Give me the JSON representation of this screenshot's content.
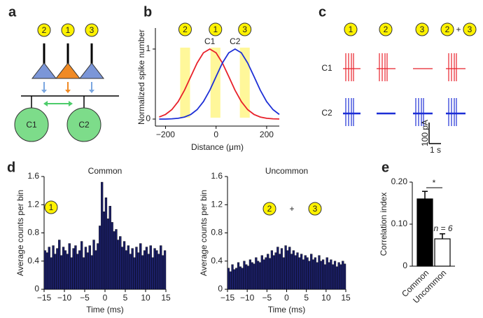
{
  "panel_labels": [
    "a",
    "b",
    "c",
    "d",
    "e"
  ],
  "panel_a": {
    "inputs": [
      "2",
      "1",
      "3"
    ],
    "cells": [
      "C1",
      "C2"
    ]
  },
  "panel_c": {
    "stimuli": [
      "1",
      "2",
      "3"
    ],
    "combined": {
      "parts": [
        "2",
        "3"
      ],
      "join": "+"
    },
    "rows": [
      "C1",
      "C2"
    ],
    "row_colors": [
      "#e8202a",
      "#1d2fd6"
    ],
    "scale_current": "100 pA",
    "scale_time": "1 s"
  },
  "chart_data": [
    {
      "type": "line",
      "xlabel": "Distance (μm)",
      "ylabel": "Normalized spike number",
      "x": [
        -225,
        -200,
        -175,
        -150,
        -125,
        -100,
        -75,
        -50,
        -25,
        0,
        25,
        50,
        75,
        100,
        125,
        150,
        175,
        200,
        225,
        250
      ],
      "series": [
        {
          "name": "C1",
          "color": "#e8202a",
          "values": [
            0.029,
            0.066,
            0.135,
            0.249,
            0.411,
            0.607,
            0.801,
            0.946,
            1,
            0.946,
            0.801,
            0.607,
            0.411,
            0.249,
            0.135,
            0.066,
            0.029,
            0.011,
            0.004,
            0.001
          ]
        },
        {
          "name": "C2",
          "color": "#1d2fd6",
          "values": [
            0,
            0,
            0.004,
            0.011,
            0.029,
            0.066,
            0.135,
            0.249,
            0.411,
            0.607,
            0.801,
            0.946,
            1,
            0.946,
            0.801,
            0.607,
            0.411,
            0.249,
            0.135,
            0.066
          ]
        }
      ],
      "xlim": [
        -240,
        250
      ],
      "ylim": [
        -0.1,
        1.3
      ],
      "xticks": [
        {
          "value": -200,
          "label": "−200"
        },
        0,
        200
      ],
      "yticks": [
        0,
        1
      ],
      "highlights": [
        {
          "label": "2",
          "range": [
            -142,
            -103
          ]
        },
        {
          "label": "1",
          "range": [
            -22,
            17
          ]
        },
        {
          "label": "3",
          "range": [
            94,
            133
          ]
        }
      ],
      "highlight_color": "#fff79a"
    },
    {
      "type": "histogram",
      "title": "Common",
      "xlabel": "Time (ms)",
      "ylabel": "Average counts per bin",
      "color": "#1b1f66",
      "stimulus": {
        "parts": [
          "1"
        ]
      },
      "bins": [
        -15,
        -14.5,
        -14,
        -13.5,
        -13,
        -12.5,
        -12,
        -11.5,
        -11,
        -10.5,
        -10,
        -9.5,
        -9,
        -8.5,
        -8,
        -7.5,
        -7,
        -6.5,
        -6,
        -5.5,
        -5,
        -4.5,
        -4,
        -3.5,
        -3,
        -2.5,
        -2,
        -1.5,
        -1,
        -0.5,
        0,
        0.5,
        1,
        1.5,
        2,
        2.5,
        3,
        3.5,
        4,
        4.5,
        5,
        5.5,
        6,
        6.5,
        7,
        7.5,
        8,
        8.5,
        9,
        9.5,
        10,
        10.5,
        11,
        11.5,
        12,
        12.5,
        13,
        13.5,
        14,
        14.5,
        15
      ],
      "values": [
        0.55,
        0.52,
        0.6,
        0.45,
        0.62,
        0.5,
        0.58,
        0.7,
        0.48,
        0.6,
        0.55,
        0.5,
        0.65,
        0.45,
        0.58,
        0.62,
        0.5,
        0.55,
        0.68,
        0.45,
        0.6,
        0.52,
        0.62,
        0.48,
        0.7,
        0.55,
        0.65,
        0.9,
        1.52,
        1.1,
        1.3,
        1.0,
        1.18,
        0.95,
        0.82,
        0.85,
        0.7,
        0.75,
        0.6,
        0.68,
        0.55,
        0.62,
        0.5,
        0.58,
        0.45,
        0.6,
        0.52,
        0.65,
        0.48,
        0.55,
        0.6,
        0.5,
        0.62,
        0.45,
        0.58,
        0.55,
        0.5,
        0.62,
        0.48,
        0.55
      ],
      "xlim": [
        -15,
        15
      ],
      "ylim": [
        0,
        1.6
      ],
      "xticks": [
        {
          "value": -15,
          "label": "−15"
        },
        {
          "value": -10,
          "label": "−10"
        },
        {
          "value": -5,
          "label": "−5"
        },
        0,
        5,
        10,
        15
      ],
      "yticks": [
        0,
        0.4,
        0.8,
        1.2,
        1.6
      ]
    },
    {
      "type": "histogram",
      "title": "Uncommon",
      "xlabel": "Time (ms)",
      "ylabel": "Average counts per bin",
      "color": "#1b1f66",
      "stimulus": {
        "parts": [
          "2",
          "3"
        ],
        "join": "+"
      },
      "bins": [
        -15,
        -14.5,
        -14,
        -13.5,
        -13,
        -12.5,
        -12,
        -11.5,
        -11,
        -10.5,
        -10,
        -9.5,
        -9,
        -8.5,
        -8,
        -7.5,
        -7,
        -6.5,
        -6,
        -5.5,
        -5,
        -4.5,
        -4,
        -3.5,
        -3,
        -2.5,
        -2,
        -1.5,
        -1,
        -0.5,
        0,
        0.5,
        1,
        1.5,
        2,
        2.5,
        3,
        3.5,
        4,
        4.5,
        5,
        5.5,
        6,
        6.5,
        7,
        7.5,
        8,
        8.5,
        9,
        9.5,
        10,
        10.5,
        11,
        11.5,
        12,
        12.5,
        13,
        13.5,
        14,
        14.5,
        15
      ],
      "values": [
        0.3,
        0.25,
        0.35,
        0.28,
        0.3,
        0.38,
        0.32,
        0.3,
        0.4,
        0.35,
        0.33,
        0.42,
        0.38,
        0.36,
        0.45,
        0.4,
        0.38,
        0.48,
        0.42,
        0.45,
        0.5,
        0.44,
        0.55,
        0.48,
        0.52,
        0.6,
        0.5,
        0.58,
        0.45,
        0.62,
        0.55,
        0.6,
        0.5,
        0.55,
        0.48,
        0.52,
        0.45,
        0.5,
        0.42,
        0.48,
        0.45,
        0.4,
        0.5,
        0.42,
        0.45,
        0.38,
        0.48,
        0.4,
        0.42,
        0.35,
        0.45,
        0.38,
        0.42,
        0.35,
        0.4,
        0.32,
        0.38,
        0.35,
        0.4,
        0.36
      ],
      "xlim": [
        -15,
        15
      ],
      "ylim": [
        0,
        1.6
      ],
      "xticks": [
        {
          "value": -15,
          "label": "−15"
        },
        {
          "value": -10,
          "label": "−10"
        },
        {
          "value": -5,
          "label": "−5"
        },
        0,
        5,
        10,
        15
      ],
      "yticks": [
        0,
        0.4,
        0.8,
        1.2,
        1.6
      ]
    },
    {
      "type": "bar",
      "ylabel": "Correlation index",
      "categories": [
        "Common",
        "Uncommon"
      ],
      "values": [
        0.16,
        0.065
      ],
      "errors": [
        0.018,
        0.012
      ],
      "colors": [
        "#000000",
        "#ffffff"
      ],
      "ylim": [
        0,
        0.2
      ],
      "yticks": [
        0,
        {
          "value": 0.1,
          "label": "0.10"
        },
        {
          "value": 0.2,
          "label": "0.20"
        }
      ],
      "annotations": [
        "*",
        "n = 6"
      ]
    }
  ]
}
